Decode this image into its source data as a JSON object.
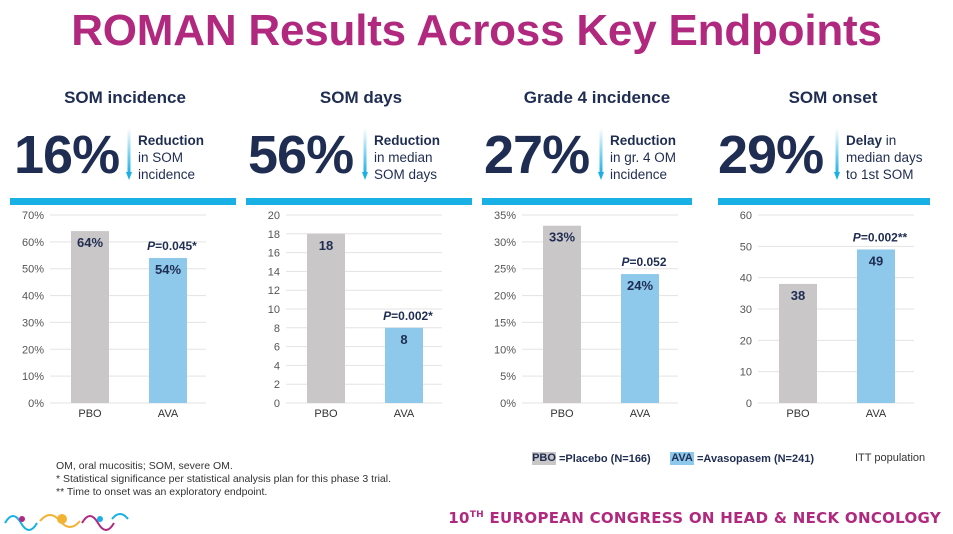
{
  "title": "ROMAN Results Across Key Endpoints",
  "colors": {
    "title": "#b0297e",
    "text": "#1f2d52",
    "placebo": "#c9c7c8",
    "avasopasem": "#8ec8ea",
    "accent_line": "#19b0e6"
  },
  "panels": [
    {
      "heading": "SOM incidence",
      "big_value": "16%",
      "desc_bold": "Reduction",
      "desc_rest": [
        "in SOM",
        "incidence"
      ]
    },
    {
      "heading": "SOM days",
      "big_value": "56%",
      "desc_bold": "Reduction",
      "desc_rest": [
        "in median",
        "SOM days"
      ]
    },
    {
      "heading": "Grade 4 incidence",
      "big_value": "27%",
      "desc_bold": "Reduction",
      "desc_rest": [
        "in gr. 4 OM",
        "incidence"
      ]
    },
    {
      "heading": "SOM onset",
      "big_value": "29%",
      "desc_bold": "Delay",
      "desc_after_bold": " in",
      "desc_rest": [
        "median days",
        "to 1st SOM"
      ]
    }
  ],
  "chart_data": [
    {
      "type": "bar",
      "categories": [
        "PBO",
        "AVA"
      ],
      "values": [
        64,
        54
      ],
      "bar_labels": [
        "64%",
        "54%"
      ],
      "ylim": [
        0,
        70
      ],
      "yticks": [
        0,
        10,
        20,
        30,
        40,
        50,
        60,
        70
      ],
      "ytick_labels": [
        "0%",
        "10%",
        "20%",
        "30%",
        "40%",
        "50%",
        "60%",
        "70%"
      ],
      "pvalue": "P=0.045*",
      "grid": true
    },
    {
      "type": "bar",
      "categories": [
        "PBO",
        "AVA"
      ],
      "values": [
        18,
        8
      ],
      "bar_labels": [
        "18",
        "8"
      ],
      "ylim": [
        0,
        20
      ],
      "yticks": [
        0,
        2,
        4,
        6,
        8,
        10,
        12,
        14,
        16,
        18,
        20
      ],
      "ytick_labels": [
        "0",
        "2",
        "4",
        "6",
        "8",
        "10",
        "12",
        "14",
        "16",
        "18",
        "20"
      ],
      "pvalue": "P=0.002*",
      "grid": true
    },
    {
      "type": "bar",
      "categories": [
        "PBO",
        "AVA"
      ],
      "values": [
        33,
        24
      ],
      "bar_labels": [
        "33%",
        "24%"
      ],
      "ylim": [
        0,
        35
      ],
      "yticks": [
        0,
        5,
        10,
        15,
        20,
        25,
        30,
        35
      ],
      "ytick_labels": [
        "0%",
        "5%",
        "10%",
        "15%",
        "20%",
        "25%",
        "30%",
        "35%"
      ],
      "pvalue": "P=0.052",
      "grid": true
    },
    {
      "type": "bar",
      "categories": [
        "PBO",
        "AVA"
      ],
      "values": [
        38,
        49
      ],
      "bar_labels": [
        "38",
        "49"
      ],
      "ylim": [
        0,
        60
      ],
      "yticks": [
        0,
        10,
        20,
        30,
        40,
        50,
        60
      ],
      "ytick_labels": [
        "0",
        "10",
        "20",
        "30",
        "40",
        "50",
        "60"
      ],
      "pvalue": "P=0.002**",
      "grid": true
    }
  ],
  "legend": {
    "pbo_abbr": "PBO",
    "pbo_text": "=Placebo (N=166)",
    "ava_abbr": "AVA",
    "ava_text": "=Avasopasem (N=241)",
    "population": "ITT population"
  },
  "footnotes": [
    "OM, oral mucositis; SOM, severe OM.",
    "* Statistical significance per statistical analysis plan for this phase 3 trial.",
    "** Time to onset was an exploratory endpoint."
  ],
  "congress": {
    "ordinal": "10",
    "suffix": "TH",
    "name": "EUROPEAN CONGRESS ON HEAD & NECK ONCOLOGY"
  }
}
